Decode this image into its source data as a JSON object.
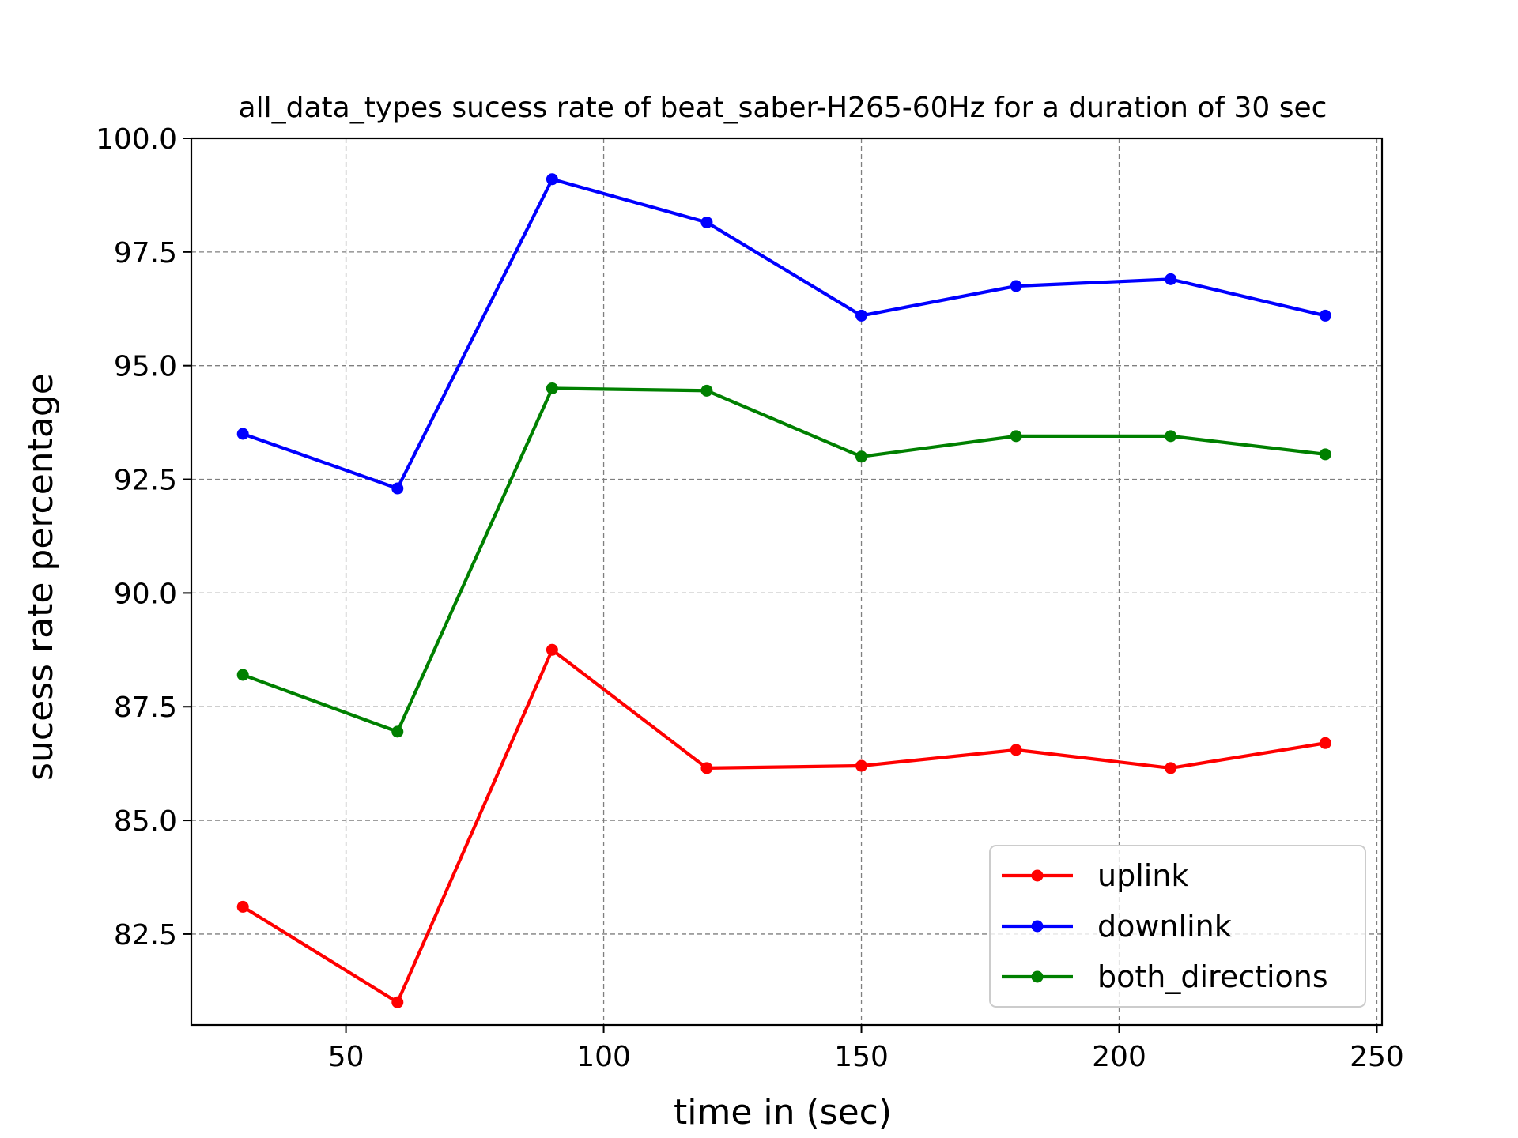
{
  "chart_data": {
    "type": "line",
    "title": "all_data_types sucess rate of beat_saber-H265-60Hz for a duration of 30 sec",
    "xlabel": "time in (sec)",
    "ylabel": "sucess rate percentage",
    "x": [
      30,
      60,
      90,
      120,
      150,
      180,
      210,
      240
    ],
    "xlim": [
      20,
      251
    ],
    "ylim": [
      80.5,
      100.0
    ],
    "xticks": [
      50,
      100,
      150,
      200,
      250
    ],
    "yticks": [
      82.5,
      85.0,
      87.5,
      90.0,
      92.5,
      95.0,
      97.5,
      100.0
    ],
    "grid": true,
    "legend_position": "bottom-right",
    "series": [
      {
        "name": "uplink",
        "color": "#ff0000",
        "values": [
          83.1,
          81.0,
          88.75,
          86.15,
          86.2,
          86.55,
          86.15,
          86.7
        ]
      },
      {
        "name": "downlink",
        "color": "#0000ff",
        "values": [
          93.5,
          92.3,
          99.1,
          98.15,
          96.1,
          96.75,
          96.9,
          96.1
        ]
      },
      {
        "name": "both_directions",
        "color": "#008000",
        "values": [
          88.2,
          86.95,
          94.5,
          94.45,
          93.0,
          93.45,
          93.45,
          93.05
        ]
      }
    ]
  }
}
